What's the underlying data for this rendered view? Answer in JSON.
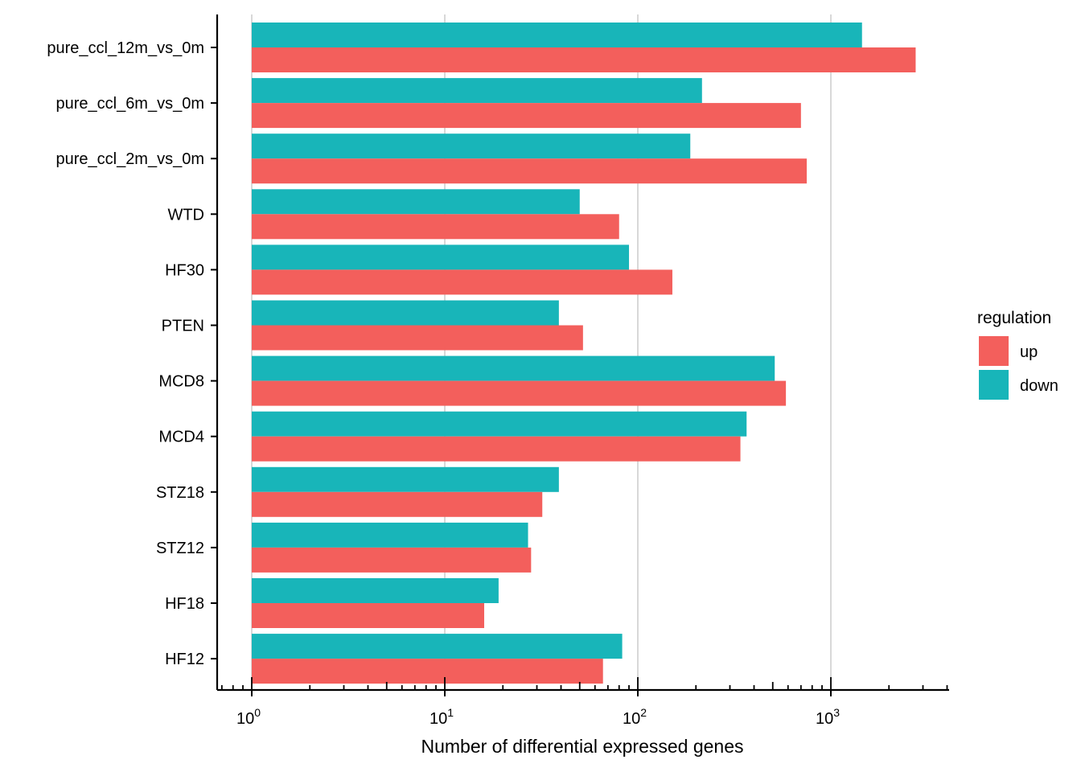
{
  "chart_data": {
    "type": "bar",
    "orientation": "horizontal",
    "xscale": "log10",
    "xlabel": "Number of differential expressed genes",
    "ylabel": "",
    "xlim": [
      0.68,
      4500
    ],
    "major_ticks": [
      1,
      10,
      100,
      1000
    ],
    "major_tick_labels": [
      {
        "base": "10",
        "exp": "0"
      },
      {
        "base": "10",
        "exp": "1"
      },
      {
        "base": "10",
        "exp": "2"
      },
      {
        "base": "10",
        "exp": "3"
      }
    ],
    "grid": "vertical-major",
    "legend": {
      "title": "regulation",
      "placement": "right",
      "entries": [
        {
          "name": "up",
          "color": "#F35F5C"
        },
        {
          "name": "down",
          "color": "#18B5B9"
        }
      ]
    },
    "categories": [
      "pure_ccl_12m_vs_0m",
      "pure_ccl_6m_vs_0m",
      "pure_ccl_2m_vs_0m",
      "WTD",
      "HF30",
      "PTEN",
      "MCD8",
      "MCD4",
      "STZ18",
      "STZ12",
      "HF18",
      "HF12"
    ],
    "series": [
      {
        "name": "down",
        "color": "#18B5B9",
        "values": [
          1450,
          215,
          187,
          50,
          90,
          39,
          512,
          366,
          39,
          27,
          19,
          83
        ]
      },
      {
        "name": "up",
        "color": "#F35F5C",
        "values": [
          2750,
          700,
          750,
          80,
          151,
          52,
          585,
          340,
          32,
          28,
          16,
          66
        ]
      }
    ]
  }
}
